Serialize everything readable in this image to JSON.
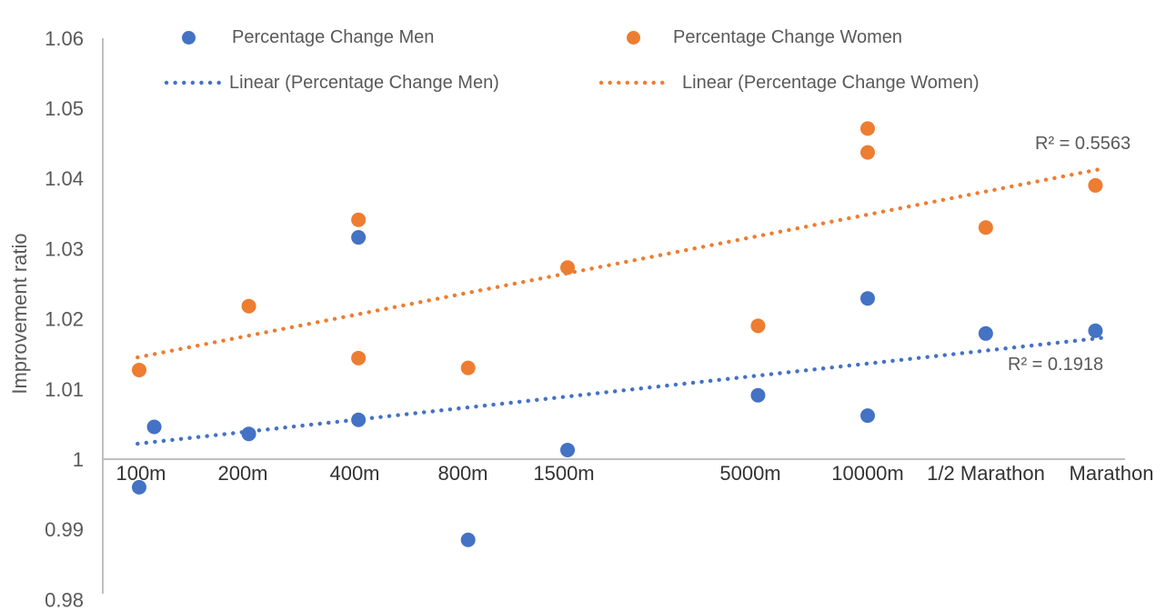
{
  "chart_data": {
    "type": "scatter",
    "title": "",
    "ylabel": "Improvement ratio",
    "ylim": [
      0.98,
      1.06
    ],
    "y_tick_labels": [
      "1.06",
      "1.05",
      "1.04",
      "1.03",
      "1.02",
      "1.01",
      "1",
      "0.99",
      "0.98"
    ],
    "y_tick_values": [
      1.06,
      1.05,
      1.04,
      1.03,
      1.02,
      1.01,
      1.0,
      0.99,
      0.98
    ],
    "x_axis_scale": "logarithmic race distance",
    "x_tick_labels": [
      "100m",
      "200m",
      "400m",
      "800m",
      "1500m",
      "5000m",
      "10000m",
      "1/2 Marathon",
      "Marathon"
    ],
    "x_tick_meters": [
      100,
      200,
      400,
      800,
      1500,
      5000,
      10000,
      21097,
      42195
    ],
    "grid": false,
    "legend_position": "top",
    "legend": [
      "Percentage Change Men",
      "Percentage Change Women",
      "Linear (Percentage Change Men)",
      "Linear (Percentage Change Women)"
    ],
    "colors": {
      "men": "#4472C4",
      "women": "#ED7D31",
      "axis_line": "#BFBFBF",
      "y_tick_text": "#595959",
      "x_tick_text": "#333333",
      "annotation_text": "#595959"
    },
    "series": [
      {
        "name": "Percentage Change Men",
        "color": "#4472C4",
        "points": [
          {
            "m": 100,
            "v": 0.996
          },
          {
            "m": 110,
            "v": 1.0046
          },
          {
            "m": 200,
            "v": 1.0036
          },
          {
            "m": 400,
            "v": 1.0056
          },
          {
            "m": 400,
            "v": 1.0316
          },
          {
            "m": 800,
            "v": 0.9885
          },
          {
            "m": 1500,
            "v": 1.0013
          },
          {
            "m": 5000,
            "v": 1.0091
          },
          {
            "m": 10000,
            "v": 1.0062
          },
          {
            "m": 10000,
            "v": 1.0229
          },
          {
            "m": 21097,
            "v": 1.0179
          },
          {
            "m": 42195,
            "v": 1.0183
          }
        ]
      },
      {
        "name": "Percentage Change Women",
        "color": "#ED7D31",
        "points": [
          {
            "m": 100,
            "v": 1.0127
          },
          {
            "m": 200,
            "v": 1.0218
          },
          {
            "m": 400,
            "v": 1.0144
          },
          {
            "m": 400,
            "v": 1.0341
          },
          {
            "m": 800,
            "v": 1.013
          },
          {
            "m": 1500,
            "v": 1.0273
          },
          {
            "m": 5000,
            "v": 1.019
          },
          {
            "m": 10000,
            "v": 1.0437
          },
          {
            "m": 10000,
            "v": 1.0471
          },
          {
            "m": 21097,
            "v": 1.033
          },
          {
            "m": 42195,
            "v": 1.039
          }
        ]
      }
    ],
    "trendlines": [
      {
        "name": "Linear (Percentage Change Men)",
        "color": "#4472C4",
        "x1_m": 99,
        "v1": 1.0022,
        "x2_m": 44300,
        "v2": 1.0173,
        "r2_label": "R² = 0.1918"
      },
      {
        "name": "Linear (Percentage Change Women)",
        "color": "#ED7D31",
        "x1_m": 99,
        "v1": 1.0145,
        "x2_m": 44300,
        "v2": 1.0414,
        "r2_label": "R² = 0.5563"
      }
    ]
  }
}
